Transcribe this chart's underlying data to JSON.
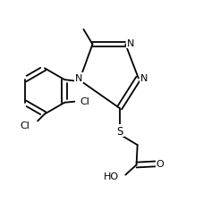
{
  "bg_color": "#ffffff",
  "line_color": "#000000",
  "atom_color": "#000000",
  "font_size": 8.0,
  "line_width": 1.3,
  "figsize": [
    2.27,
    2.26
  ],
  "dpi": 100,
  "xlim": [
    0.0,
    1.0
  ],
  "ylim": [
    0.05,
    1.05
  ]
}
